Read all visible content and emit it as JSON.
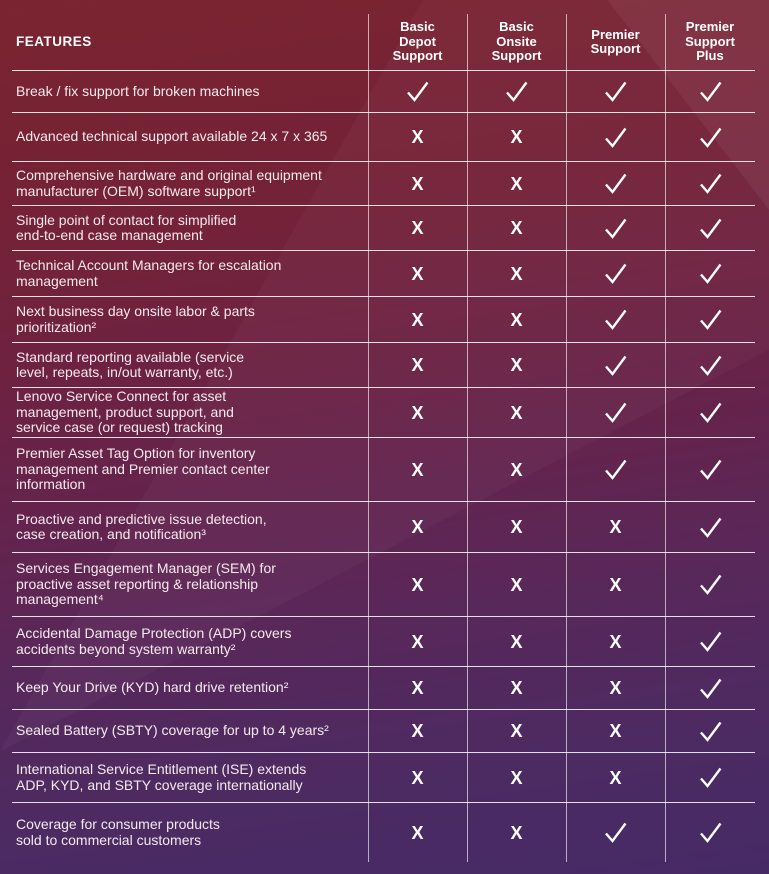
{
  "colors": {
    "background_top": "#7b2431",
    "background_bottom": "#462a66",
    "divider": "#ffffff",
    "text": "#f5eaed",
    "header_text": "#ffffff"
  },
  "table": {
    "features_header": "FEATURES",
    "columns": [
      "Basic\nDepot\nSupport",
      "Basic\nOnsite\nSupport",
      "Premier\nSupport",
      "Premier\nSupport\nPlus"
    ],
    "glyphs": {
      "check": "✓",
      "x": "X"
    },
    "rows": [
      {
        "feature": "Break / fix support for broken machines",
        "values": [
          "check",
          "check",
          "check",
          "check"
        ]
      },
      {
        "feature": "Advanced technical support available 24 x 7 x 365",
        "values": [
          "x",
          "x",
          "check",
          "check"
        ]
      },
      {
        "feature": "Comprehensive hardware and original equipment\nmanufacturer (OEM) software support¹",
        "values": [
          "x",
          "x",
          "check",
          "check"
        ]
      },
      {
        "feature": "Single point of contact for simplified\nend-to-end case management",
        "values": [
          "x",
          "x",
          "check",
          "check"
        ]
      },
      {
        "feature": "Technical Account Managers for escalation\nmanagement",
        "values": [
          "x",
          "x",
          "check",
          "check"
        ]
      },
      {
        "feature": "Next business day onsite labor & parts\nprioritization²",
        "values": [
          "x",
          "x",
          "check",
          "check"
        ]
      },
      {
        "feature": "Standard reporting available (service\nlevel, repeats, in/out warranty, etc.)",
        "values": [
          "x",
          "x",
          "check",
          "check"
        ]
      },
      {
        "feature": "Lenovo Service Connect for asset\nmanagement, product support, and\nservice case (or request) tracking",
        "values": [
          "x",
          "x",
          "check",
          "check"
        ]
      },
      {
        "feature": "Premier Asset Tag Option for inventory\nmanagement and Premier contact center\ninformation",
        "values": [
          "x",
          "x",
          "check",
          "check"
        ]
      },
      {
        "feature": "Proactive and predictive issue detection,\ncase creation, and notification³",
        "values": [
          "x",
          "x",
          "x",
          "check"
        ]
      },
      {
        "feature": "Services Engagement Manager (SEM) for\nproactive asset reporting & relationship\nmanagement⁴",
        "values": [
          "x",
          "x",
          "x",
          "check"
        ]
      },
      {
        "feature": "Accidental Damage Protection (ADP) covers\naccidents beyond system warranty²",
        "values": [
          "x",
          "x",
          "x",
          "check"
        ]
      },
      {
        "feature": "Keep Your Drive (KYD) hard drive retention²",
        "values": [
          "x",
          "x",
          "x",
          "check"
        ]
      },
      {
        "feature": "Sealed Battery (SBTY) coverage for up to 4 years²",
        "values": [
          "x",
          "x",
          "x",
          "check"
        ]
      },
      {
        "feature": "International Service Entitlement (ISE) extends\nADP, KYD, and SBTY coverage internationally",
        "values": [
          "x",
          "x",
          "x",
          "check"
        ]
      },
      {
        "feature": "Coverage for consumer products\nsold to commercial customers",
        "values": [
          "x",
          "x",
          "check",
          "check"
        ]
      }
    ]
  }
}
